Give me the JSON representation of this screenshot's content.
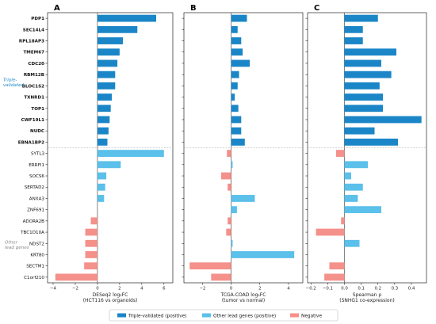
{
  "chart_data": {
    "type": "bar",
    "orientation": "horizontal",
    "genes": [
      "PDP1",
      "SEC14L4",
      "RPL18AP3",
      "TMEM67",
      "CDC20",
      "RBM12B",
      "BLOC1S2",
      "TXNRD1",
      "TOP1",
      "CWF19L1",
      "NUDC",
      "EBNA1BP2",
      "SYTL3",
      "ERRFI1",
      "SOCS6",
      "SERTAD2",
      "ANXA3",
      "ZNF691",
      "ADORA2B",
      "TBC1D10A",
      "NDST2",
      "KRT80",
      "SECTM1",
      "C1orf210"
    ],
    "triple_validated_count": 12,
    "group_labels": {
      "triple": "Triple-\nvalidated",
      "other": "Other\nlead genes"
    },
    "panels": [
      {
        "letter": "A",
        "xlabel": "DESeq2 log₂FC\n(HCT116 vs organoids)",
        "xlim": [
          -4.5,
          6.8
        ],
        "xticks": [
          -4,
          -2,
          0,
          2,
          4,
          6
        ],
        "values": [
          5.3,
          3.6,
          2.3,
          2.0,
          1.8,
          1.6,
          1.6,
          1.3,
          1.2,
          1.1,
          1.0,
          0.9,
          6.0,
          2.1,
          0.8,
          0.7,
          0.6,
          0.0,
          -0.6,
          -1.1,
          -1.1,
          -1.1,
          -1.2,
          -3.8
        ]
      },
      {
        "letter": "B",
        "xlabel": "TCGA-COAD log₂FC\n(tumor vs normal)",
        "xlim": [
          -3.3,
          5.0
        ],
        "xticks": [
          -2,
          0,
          2,
          4
        ],
        "values": [
          1.1,
          0.45,
          0.7,
          0.8,
          1.3,
          0.55,
          0.45,
          0.25,
          0.5,
          0.7,
          0.7,
          0.95,
          -0.3,
          0.1,
          -0.7,
          -0.25,
          1.65,
          0.4,
          -0.25,
          -0.35,
          0.1,
          4.4,
          -2.9,
          -1.4
        ]
      },
      {
        "letter": "C",
        "xlabel": "Spearman ρ\n(SNHG1 co-expression)",
        "xlim": [
          -0.22,
          0.49
        ],
        "xticks": [
          -0.2,
          -0.1,
          0.0,
          0.1,
          0.2,
          0.3,
          0.4
        ],
        "values": [
          0.2,
          0.11,
          0.11,
          0.31,
          0.22,
          0.28,
          0.21,
          0.23,
          0.23,
          0.46,
          0.18,
          0.32,
          -0.05,
          0.14,
          0.04,
          0.11,
          0.08,
          0.22,
          -0.02,
          -0.17,
          0.09,
          0.0,
          -0.09,
          -0.12
        ]
      }
    ],
    "legend": {
      "placement": "bottom-center",
      "items": [
        {
          "label": "Triple-validated (positive)",
          "color": "#1a86c7"
        },
        {
          "label": "Other lead genes (positive)",
          "color": "#5bc0ea"
        },
        {
          "label": "Negative",
          "color": "#f4918a"
        }
      ]
    },
    "colors": {
      "triple": "#1a86c7",
      "other": "#5bc0ea",
      "negative": "#f4918a",
      "triple_label": "#1a86c7",
      "other_label": "#888888",
      "separator": "#aaaaaa"
    }
  }
}
